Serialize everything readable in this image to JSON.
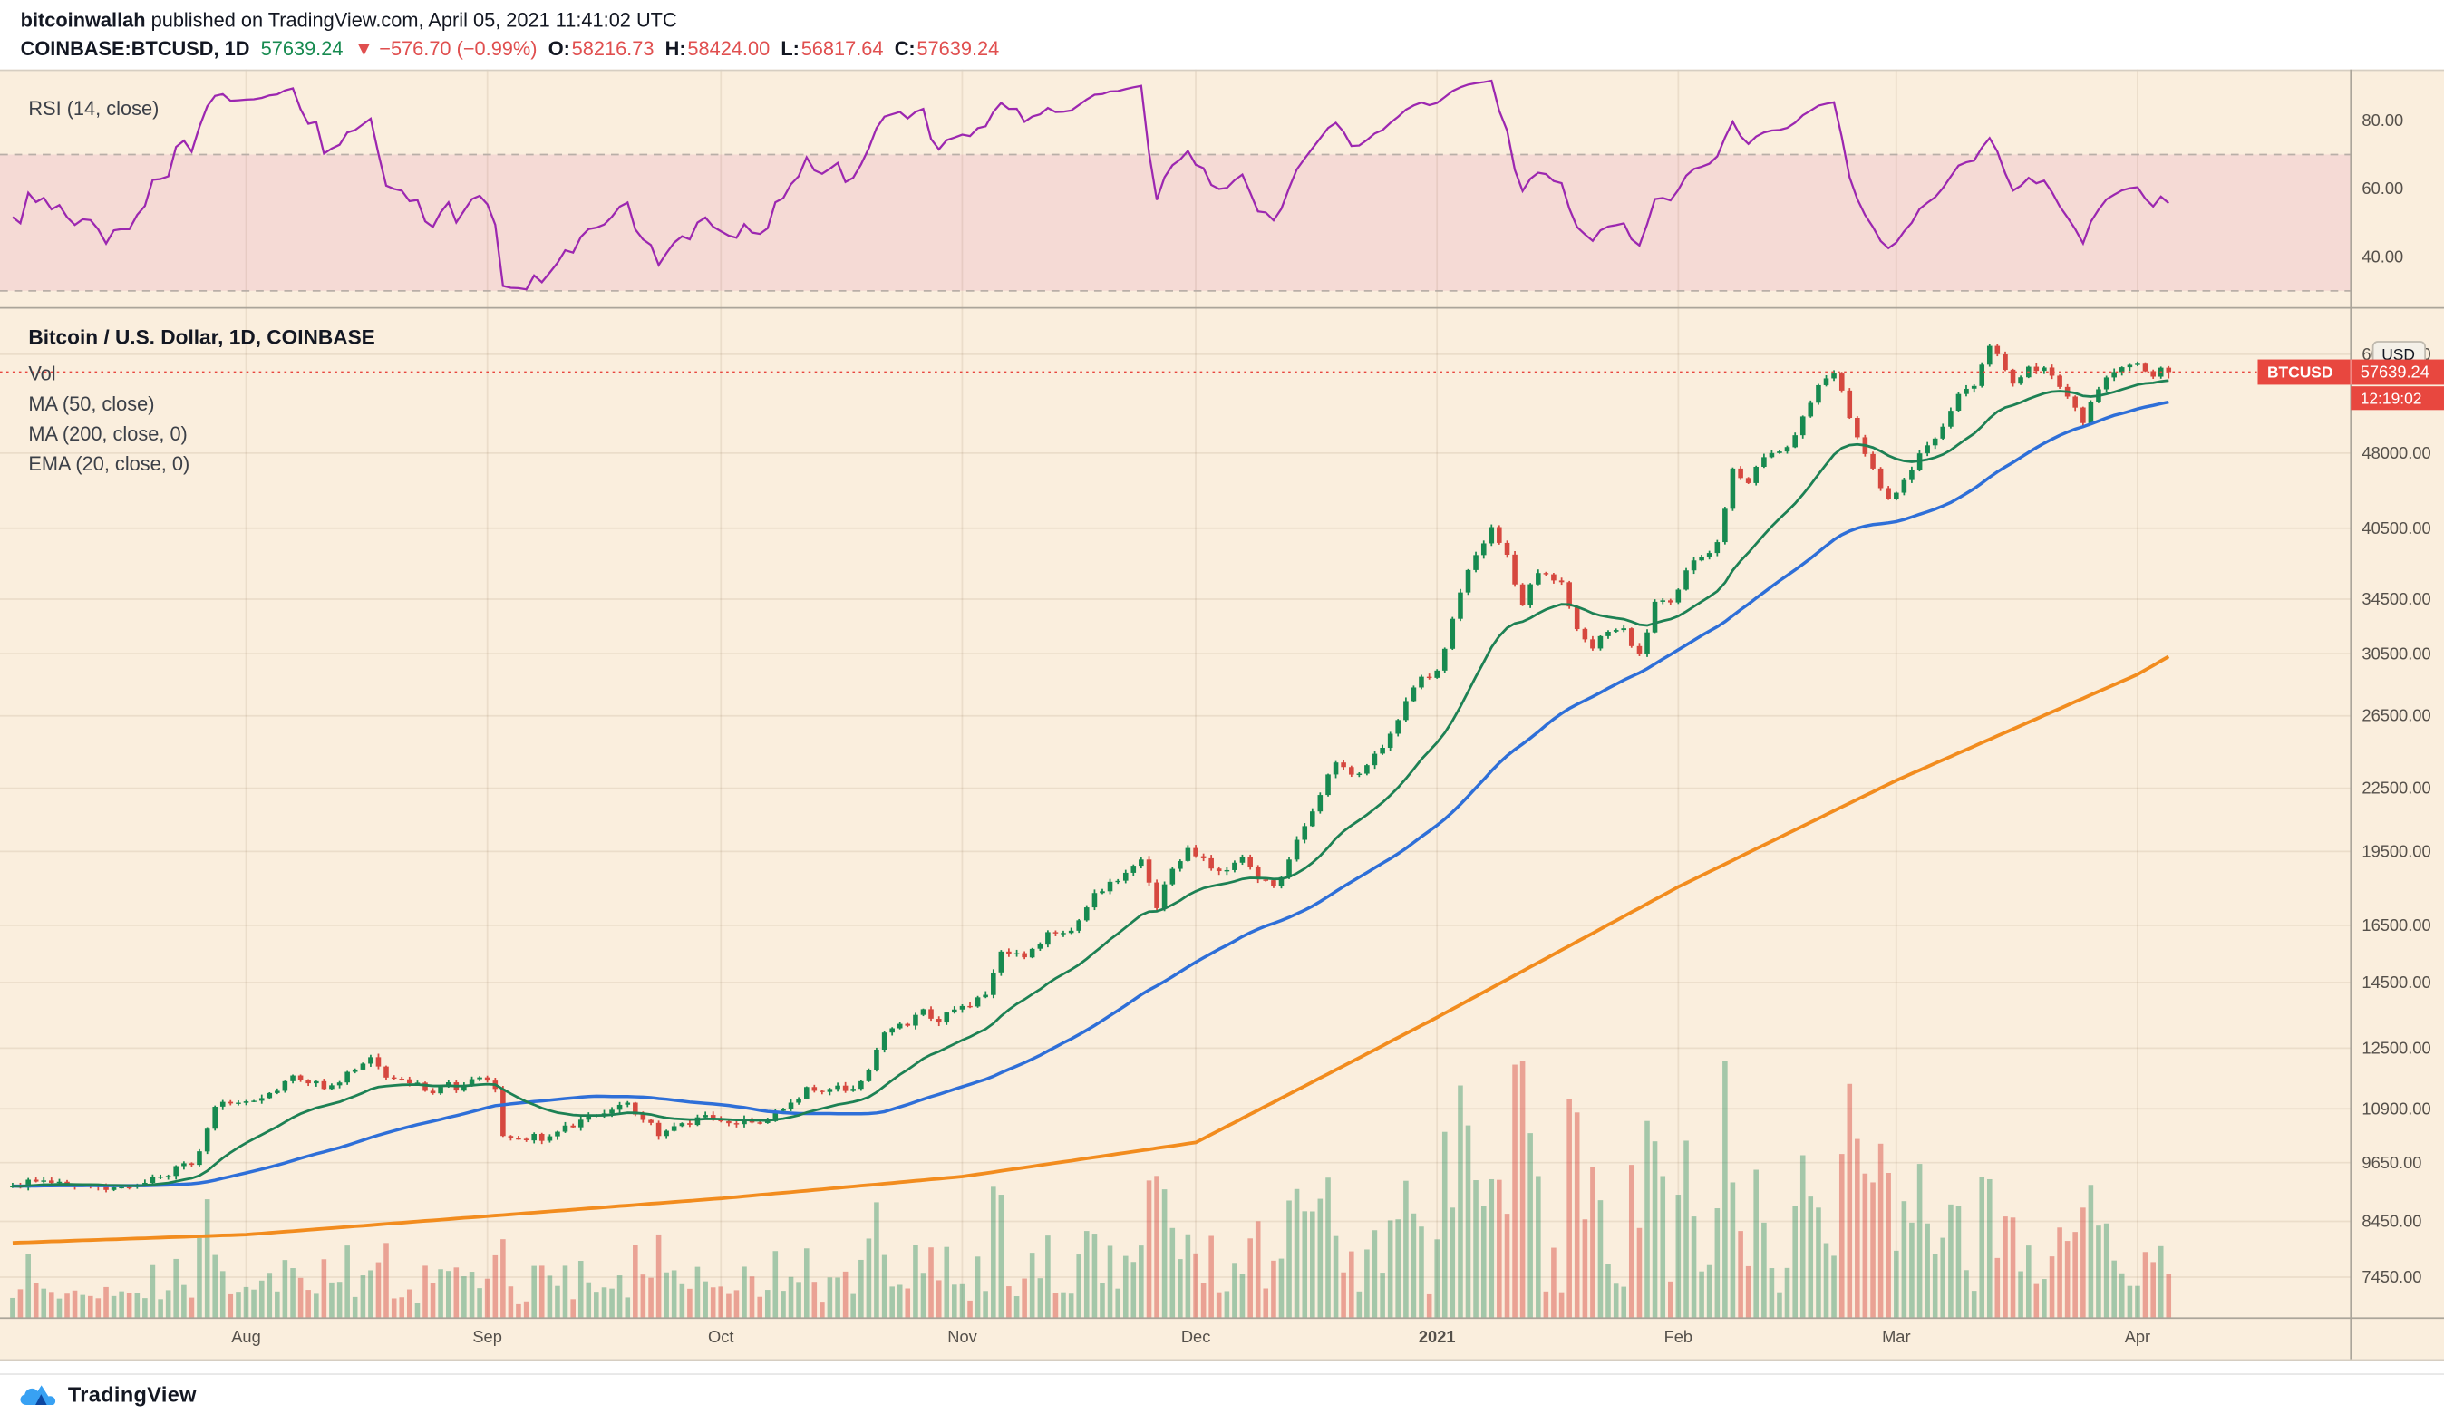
{
  "header": {
    "author": "bitcoinwallah",
    "published": " published on TradingView.com, April 05, 2021 11:41:02 UTC",
    "symbol_line": {
      "symbol": "COINBASE:BTCUSD, 1D",
      "price": "57639.24",
      "change": "▼ −576.70 (−0.99%)",
      "o_label": "O:",
      "o": "58216.73",
      "h_label": "H:",
      "h": "58424.00",
      "l_label": "L:",
      "l": "56817.64",
      "c_label": "C:",
      "c": "57639.24"
    }
  },
  "legends": {
    "rsi": "RSI (14, close)",
    "main_title": "Bitcoin / U.S. Dollar, 1D, COINBASE",
    "vol": "Vol",
    "ma50": "MA (50, close)",
    "ma200": "MA (200, close, 0)",
    "ema20": "EMA (20, close, 0)"
  },
  "axis": {
    "rsi_labels": [
      {
        "v": 80,
        "t": "80.00"
      },
      {
        "v": 60,
        "t": "60.00"
      },
      {
        "v": 40,
        "t": "40.00"
      }
    ],
    "price_labels": [
      {
        "v": 60000,
        "t": "60000.00"
      },
      {
        "v": 48000,
        "t": "48000.00"
      },
      {
        "v": 40500,
        "t": "40500.00"
      },
      {
        "v": 34500,
        "t": "34500.00"
      },
      {
        "v": 30500,
        "t": "30500.00"
      },
      {
        "v": 26500,
        "t": "26500.00"
      },
      {
        "v": 22500,
        "t": "22500.00"
      },
      {
        "v": 19500,
        "t": "19500.00"
      },
      {
        "v": 16500,
        "t": "16500.00"
      },
      {
        "v": 14500,
        "t": "14500.00"
      },
      {
        "v": 12500,
        "t": "12500.00"
      },
      {
        "v": 10900,
        "t": "10900.00"
      },
      {
        "v": 9650,
        "t": "9650.00"
      },
      {
        "v": 8450,
        "t": "8450.00"
      },
      {
        "v": 7450,
        "t": "7450.00"
      }
    ],
    "unit_badge": "USD",
    "months": [
      {
        "d": 30,
        "t": "Aug"
      },
      {
        "d": 61,
        "t": "Sep"
      },
      {
        "d": 91,
        "t": "Oct"
      },
      {
        "d": 122,
        "t": "Nov"
      },
      {
        "d": 152,
        "t": "Dec"
      },
      {
        "d": 183,
        "t": "2021",
        "bold": true
      },
      {
        "d": 214,
        "t": "Feb"
      },
      {
        "d": 242,
        "t": "Mar"
      },
      {
        "d": 273,
        "t": "Apr"
      }
    ]
  },
  "price_chip": {
    "symbol": "BTCUSD",
    "price": "57639.24",
    "countdown": "12:19:02",
    "value": 57639.24
  },
  "footer": {
    "brand": "TradingView"
  },
  "colors": {
    "bg": "#FAEEDD",
    "up": "#178A50",
    "down": "#D6483F",
    "ma50": "#2E6FD8",
    "ma200": "#F28C1E",
    "ema20": "#1D8154",
    "rsi": "#9C27B0",
    "rsi_band": "rgba(199,21,133,0.09)",
    "grid": "rgba(139,108,75,0.13)",
    "chip": "#E8473F",
    "accent_red": "#E04F4F",
    "vol_up": "rgba(34,140,92,0.40)",
    "vol_down": "rgba(214,69,60,0.45)",
    "axis_text": "#55504A"
  },
  "chart_data": {
    "type": "candlestick",
    "pair": "Bitcoin / U.S. Dollar",
    "exchange": "COINBASE",
    "interval": "1D",
    "scale": "log",
    "indicators": [
      "Vol",
      "MA (50, close)",
      "MA (200, close, 0)",
      "EMA (20, close, 0)",
      "RSI (14, close)"
    ],
    "rsi_period": 14,
    "rsi_band": [
      30,
      70
    ],
    "price_line": 57639.24,
    "last_candle": {
      "o": 58216.73,
      "h": 58424.0,
      "l": 56817.64,
      "c": 57639.24
    },
    "close_anchors": [
      [
        0,
        9150
      ],
      [
        4,
        9270
      ],
      [
        9,
        9180
      ],
      [
        14,
        9130
      ],
      [
        19,
        9350
      ],
      [
        23,
        9600
      ],
      [
        24,
        9900
      ],
      [
        26,
        10950
      ],
      [
        29,
        11050
      ],
      [
        31,
        11100
      ],
      [
        34,
        11350
      ],
      [
        36,
        11750
      ],
      [
        40,
        11400
      ],
      [
        43,
        11850
      ],
      [
        46,
        12250
      ],
      [
        48,
        11700
      ],
      [
        50,
        11650
      ],
      [
        53,
        11350
      ],
      [
        55,
        11450
      ],
      [
        58,
        11500
      ],
      [
        60,
        11700
      ],
      [
        62,
        11400
      ],
      [
        63,
        10250
      ],
      [
        66,
        10150
      ],
      [
        70,
        10350
      ],
      [
        75,
        10750
      ],
      [
        79,
        11050
      ],
      [
        83,
        10250
      ],
      [
        86,
        10550
      ],
      [
        89,
        10750
      ],
      [
        92,
        10550
      ],
      [
        94,
        10650
      ],
      [
        97,
        10600
      ],
      [
        100,
        11050
      ],
      [
        102,
        11450
      ],
      [
        105,
        11400
      ],
      [
        107,
        11350
      ],
      [
        110,
        11900
      ],
      [
        112,
        12950
      ],
      [
        115,
        13150
      ],
      [
        117,
        13650
      ],
      [
        119,
        13250
      ],
      [
        120,
        13550
      ],
      [
        122,
        13750
      ],
      [
        125,
        14100
      ],
      [
        127,
        15550
      ],
      [
        130,
        15350
      ],
      [
        133,
        16250
      ],
      [
        136,
        16300
      ],
      [
        139,
        17750
      ],
      [
        142,
        18250
      ],
      [
        145,
        19150
      ],
      [
        147,
        17150
      ],
      [
        149,
        18750
      ],
      [
        151,
        19650
      ],
      [
        153,
        19200
      ],
      [
        155,
        18650
      ],
      [
        158,
        19250
      ],
      [
        160,
        18300
      ],
      [
        162,
        18050
      ],
      [
        164,
        19150
      ],
      [
        167,
        21350
      ],
      [
        170,
        23850
      ],
      [
        173,
        23250
      ],
      [
        176,
        24650
      ],
      [
        178,
        26250
      ],
      [
        181,
        28950
      ],
      [
        183,
        29350
      ],
      [
        185,
        33000
      ],
      [
        187,
        36850
      ],
      [
        190,
        40600
      ],
      [
        192,
        38150
      ],
      [
        194,
        34050
      ],
      [
        196,
        36600
      ],
      [
        199,
        35850
      ],
      [
        201,
        32250
      ],
      [
        203,
        30850
      ],
      [
        205,
        32050
      ],
      [
        207,
        32300
      ],
      [
        209,
        30450
      ],
      [
        211,
        34300
      ],
      [
        213,
        34250
      ],
      [
        216,
        37650
      ],
      [
        219,
        39250
      ],
      [
        221,
        46350
      ],
      [
        223,
        44850
      ],
      [
        225,
        47550
      ],
      [
        228,
        48650
      ],
      [
        230,
        52150
      ],
      [
        232,
        55950
      ],
      [
        234,
        57450
      ],
      [
        237,
        49750
      ],
      [
        239,
        46350
      ],
      [
        241,
        43250
      ],
      [
        243,
        45150
      ],
      [
        246,
        48850
      ],
      [
        248,
        50950
      ],
      [
        250,
        54850
      ],
      [
        252,
        55850
      ],
      [
        254,
        61150
      ],
      [
        257,
        56150
      ],
      [
        259,
        58350
      ],
      [
        261,
        58250
      ],
      [
        263,
        55750
      ],
      [
        266,
        51350
      ],
      [
        268,
        55450
      ],
      [
        270,
        57650
      ],
      [
        273,
        58750
      ],
      [
        275,
        57050
      ],
      [
        276,
        58216.73
      ],
      [
        277,
        57639.24
      ]
    ],
    "ma200_anchors": [
      [
        0,
        8050
      ],
      [
        30,
        8200
      ],
      [
        61,
        8550
      ],
      [
        91,
        8900
      ],
      [
        122,
        9350
      ],
      [
        152,
        10100
      ],
      [
        183,
        13400
      ],
      [
        214,
        18000
      ],
      [
        242,
        22900
      ],
      [
        273,
        29100
      ],
      [
        277,
        30300
      ]
    ],
    "volume_spikes": {
      "26": 40,
      "63": 50,
      "112": 40,
      "145": 46,
      "170": 52,
      "181": 58,
      "185": 70,
      "190": 88,
      "194": 163,
      "196": 90,
      "203": 96,
      "211": 112,
      "212": 90,
      "221": 86,
      "232": 70,
      "235": 104,
      "241": 92,
      "246": 60,
      "254": 88,
      "266": 70,
      "277": 28
    }
  }
}
